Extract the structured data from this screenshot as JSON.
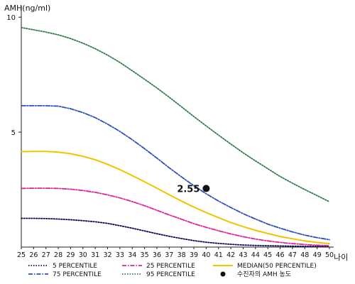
{
  "chart_data": {
    "type": "line",
    "ylabel": "AMH(ng/ml)",
    "xlabel": "나이",
    "x": [
      25,
      26,
      27,
      28,
      29,
      30,
      31,
      32,
      33,
      34,
      35,
      36,
      37,
      38,
      39,
      40,
      41,
      42,
      43,
      44,
      45,
      46,
      47,
      48,
      49,
      50
    ],
    "x_tick_labels": [
      "25",
      "26",
      "27",
      "28",
      "29",
      "30",
      "31",
      "32",
      "33",
      "34",
      "35",
      "36",
      "37",
      "38",
      "39",
      "40",
      "41",
      "42",
      "43",
      "44",
      "45",
      "46",
      "47",
      "48",
      "49",
      "50"
    ],
    "xlim": [
      25,
      50
    ],
    "ylim": [
      0,
      10.5
    ],
    "y_ticks": [
      5,
      10
    ],
    "y_tick_labels": [
      "5",
      "10"
    ],
    "grid": false,
    "legend_position": "bottom",
    "series": [
      {
        "name": "5 PERCENTILE",
        "color": "#0a0a5a",
        "style": "dotted",
        "values": [
          1.25,
          1.25,
          1.24,
          1.22,
          1.19,
          1.15,
          1.1,
          1.03,
          0.93,
          0.82,
          0.7,
          0.58,
          0.47,
          0.37,
          0.28,
          0.21,
          0.16,
          0.12,
          0.09,
          0.07,
          0.06,
          0.05,
          0.04,
          0.03,
          0.03,
          0.02
        ]
      },
      {
        "name": "75 PERCENTILE",
        "color": "#2f4fbf",
        "style": "dashdot",
        "values": [
          6.15,
          6.15,
          6.15,
          6.13,
          6.02,
          5.85,
          5.63,
          5.35,
          5.03,
          4.67,
          4.28,
          3.87,
          3.45,
          3.05,
          2.67,
          2.32,
          2.0,
          1.72,
          1.45,
          1.22,
          1.0,
          0.82,
          0.66,
          0.52,
          0.41,
          0.32
        ]
      },
      {
        "name": "25 PERCENTILE",
        "color": "#e0239a",
        "style": "dashdot",
        "values": [
          2.55,
          2.56,
          2.56,
          2.55,
          2.52,
          2.46,
          2.38,
          2.27,
          2.14,
          1.98,
          1.8,
          1.6,
          1.4,
          1.21,
          1.02,
          0.86,
          0.71,
          0.57,
          0.45,
          0.35,
          0.27,
          0.2,
          0.15,
          0.11,
          0.08,
          0.06
        ]
      },
      {
        "name": "95 PERCENTILE",
        "color": "#2e7a4a",
        "style": "dotted",
        "values": [
          9.55,
          9.45,
          9.35,
          9.23,
          9.07,
          8.87,
          8.63,
          8.35,
          8.03,
          7.67,
          7.3,
          6.92,
          6.52,
          6.1,
          5.68,
          5.27,
          4.87,
          4.48,
          4.1,
          3.75,
          3.41,
          3.07,
          2.78,
          2.5,
          2.24,
          1.97
        ]
      },
      {
        "name": "MEDIAN(50 PERCENTILE)",
        "color": "#f2c400",
        "style": "solid",
        "values": [
          4.15,
          4.16,
          4.16,
          4.13,
          4.06,
          3.95,
          3.8,
          3.6,
          3.37,
          3.11,
          2.84,
          2.56,
          2.28,
          2.0,
          1.74,
          1.5,
          1.28,
          1.07,
          0.89,
          0.73,
          0.59,
          0.46,
          0.36,
          0.27,
          0.2,
          0.15
        ]
      }
    ],
    "marker": {
      "name": "수진자의 AMH 농도",
      "x": 40,
      "y": 2.55,
      "label": "2.55",
      "color": "#111111"
    }
  }
}
